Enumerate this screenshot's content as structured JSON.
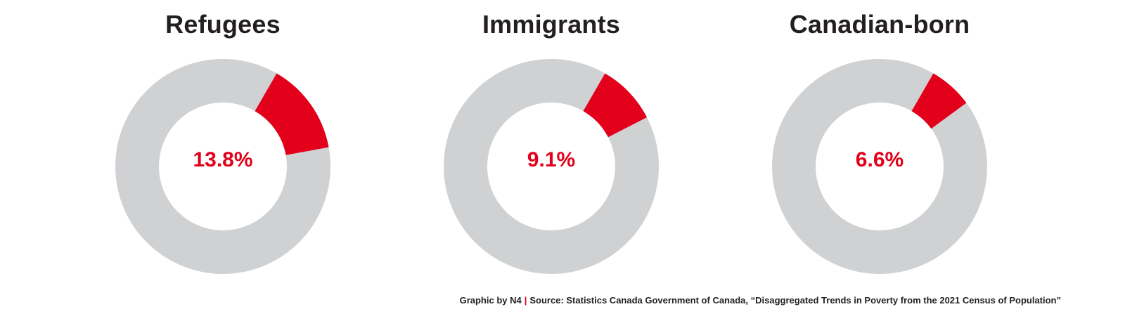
{
  "colors": {
    "accent": "#e2001a",
    "track": "#d0d1d3",
    "text": "#231f20"
  },
  "chart_data": [
    {
      "type": "pie",
      "title": "Refugees",
      "value": 13.8,
      "label": "13.8%"
    },
    {
      "type": "pie",
      "title": "Immigrants",
      "value": 9.1,
      "label": "9.1%"
    },
    {
      "type": "pie",
      "title": "Canadian-born",
      "value": 6.6,
      "label": "6.6%"
    }
  ],
  "footer": {
    "credit": "Graphic by N4",
    "separator": "|",
    "source": "Source: Statistics Canada Government of Canada, “Disaggregated Trends in Poverty from the 2021 Census of Population”"
  }
}
